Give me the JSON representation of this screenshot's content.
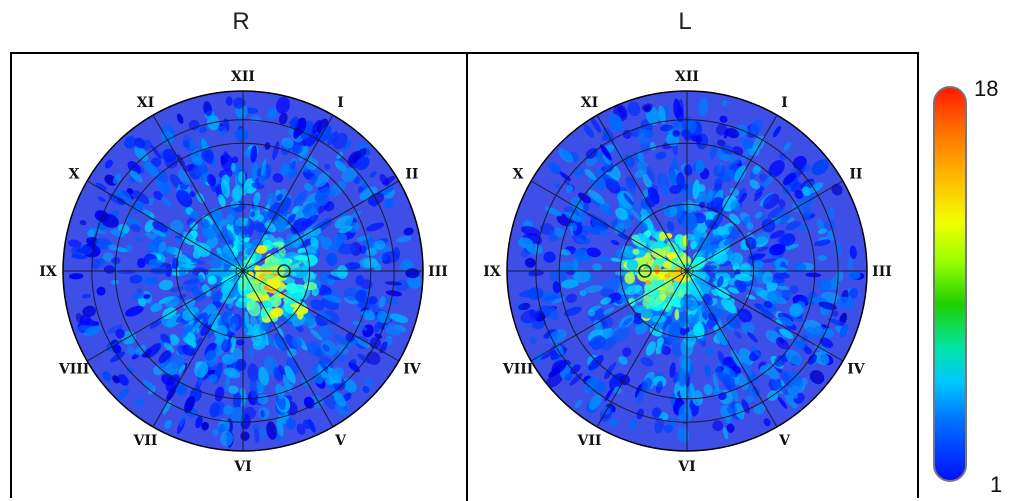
{
  "panels": [
    {
      "title": "R"
    },
    {
      "title": "L"
    }
  ],
  "clock_labels": [
    "XII",
    "I",
    "II",
    "III",
    "IV",
    "V",
    "VI",
    "VII",
    "VIII",
    "IX",
    "X",
    "XI"
  ],
  "colorbar": {
    "max_label": "18",
    "min_label": "1"
  },
  "colors": {
    "disc_background": "#3d4fe6",
    "grid_lines": "#1a1a2e",
    "low": "#0010ff",
    "mid": "#1fd000",
    "high": "#ff1a00"
  },
  "chart_data": {
    "type": "heatmap",
    "projection": "polar",
    "value_range": [
      1,
      18
    ],
    "colormap": "jet",
    "panels": [
      {
        "name": "R",
        "marker_center_pos": "nasal-right",
        "hotspot_center": "slightly right of center, below"
      },
      {
        "name": "L",
        "marker_center_pos": "nasal-left",
        "hotspot_center": "slightly left of center, above-right"
      }
    ]
  }
}
